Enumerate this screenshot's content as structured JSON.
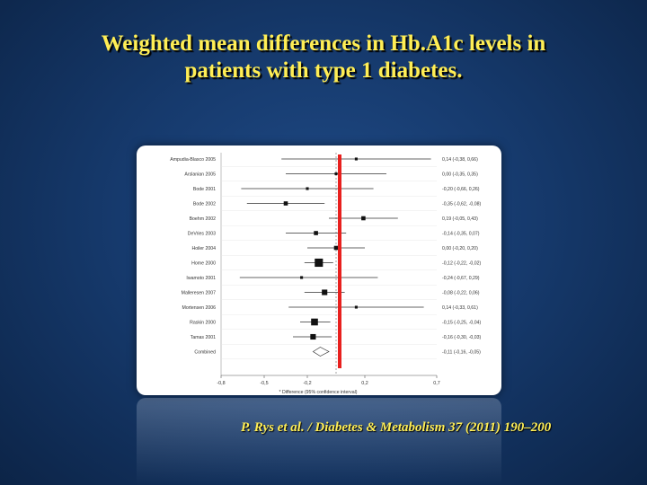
{
  "slide": {
    "title_line1": "Weighted mean differences in Hb.A1c levels in",
    "title_line2": "patients with type 1 diabetes.",
    "citation": "P. Rys et al. / Diabetes & Metabolism 37 (2011) 190–200"
  },
  "colors": {
    "title": "#ffee55",
    "reference_line": "#e8201e",
    "marker": "#111111"
  },
  "chart_data": {
    "type": "forest",
    "xlabel": "Difference (95% confidence interval)",
    "xlim": [
      -0.8,
      0.7
    ],
    "xticks": [
      "-0,8",
      "-0,5",
      "-0,2",
      "0,2",
      "0,7"
    ],
    "xtick_values": [
      -0.8,
      -0.5,
      -0.2,
      0.2,
      0.7
    ],
    "reference_x": 0.0,
    "studies": [
      {
        "name": "Ampudia-Blasco 2005",
        "est": 0.14,
        "lo": -0.38,
        "hi": 0.66,
        "label": "0,14 (-0,38, 0,66)",
        "weight": 1
      },
      {
        "name": "Arslanian 2005",
        "est": 0.0,
        "lo": -0.35,
        "hi": 0.35,
        "label": "0,00 (-0,35, 0,35)",
        "weight": 1
      },
      {
        "name": "Bode 2001",
        "est": -0.2,
        "lo": -0.66,
        "hi": 0.26,
        "label": "-0,20 (-0,66, 0,26)",
        "weight": 1
      },
      {
        "name": "Bode 2002",
        "est": -0.35,
        "lo": -0.62,
        "hi": -0.08,
        "label": "-0,35 (-0,62, -0,08)",
        "weight": 2
      },
      {
        "name": "Boehm 2002",
        "est": 0.19,
        "lo": -0.05,
        "hi": 0.43,
        "label": "0,19 (-0,05, 0,43)",
        "weight": 2
      },
      {
        "name": "DeVries 2003",
        "est": -0.14,
        "lo": -0.35,
        "hi": 0.07,
        "label": "-0,14 (-0,35, 0,07)",
        "weight": 2
      },
      {
        "name": "Hoiler 2004",
        "est": 0.0,
        "lo": -0.2,
        "hi": 0.2,
        "label": "0,00 (-0,20, 0,20)",
        "weight": 2
      },
      {
        "name": "Home 2000",
        "est": -0.12,
        "lo": -0.22,
        "hi": -0.02,
        "label": "-0,12 (-0,22, -0,02)",
        "weight": 5
      },
      {
        "name": "Iwamoto 2001",
        "est": -0.24,
        "lo": -0.67,
        "hi": 0.29,
        "label": "-0,24 (-0,67, 0,29)",
        "weight": 1
      },
      {
        "name": "Malleresen 2007",
        "est": -0.08,
        "lo": -0.22,
        "hi": 0.06,
        "label": "-0,08 (-0,22, 0,06)",
        "weight": 3
      },
      {
        "name": "Mortensen 2006",
        "est": 0.14,
        "lo": -0.33,
        "hi": 0.61,
        "label": "0,14 (-0,33, 0,61)",
        "weight": 1
      },
      {
        "name": "Raskin 2000",
        "est": -0.15,
        "lo": -0.25,
        "hi": -0.04,
        "label": "-0,15 (-0,25, -0,04)",
        "weight": 4
      },
      {
        "name": "Tamas 2001",
        "est": -0.16,
        "lo": -0.3,
        "hi": -0.03,
        "label": "-0,16 (-0,30, -0,03)",
        "weight": 3
      }
    ],
    "combined": {
      "name": "Combined",
      "est": -0.11,
      "lo": -0.16,
      "hi": -0.05,
      "label": "-0,11 (-0,16, -0,05)"
    }
  }
}
